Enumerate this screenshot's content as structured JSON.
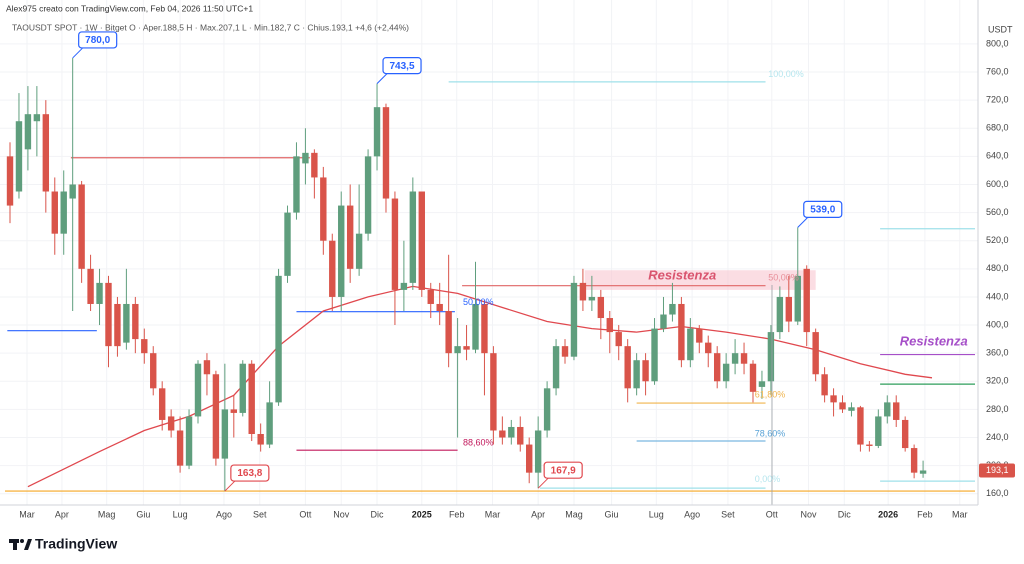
{
  "chart_data": {
    "type": "candlestick",
    "credit": "Alex975 creato con TradingView.com, Feb 04, 2026 11:50 UTC+1",
    "title": "TAOUSDT SPOT · 1W · Bitget   O · Aper.188,5   H · Max.207,1   L · Min.182,7   C · Chius.193,1   +4,6 (+2,44%)",
    "y_unit": "USDT",
    "logo": "TradingView",
    "up_color": "#5f9e7d",
    "down_color": "#d9544a",
    "grid": true,
    "xlim": [
      -0.56,
      107.8
    ],
    "ylim": [
      144,
      834
    ],
    "yticks": [
      {
        "value": 160,
        "label": "160,0"
      },
      {
        "value": 200,
        "label": "200,0"
      },
      {
        "value": 240,
        "label": "240,0"
      },
      {
        "value": 280,
        "label": "280,0"
      },
      {
        "value": 320,
        "label": "320,0"
      },
      {
        "value": 360,
        "label": "360,0"
      },
      {
        "value": 400,
        "label": "400,0"
      },
      {
        "value": 440,
        "label": "440,0"
      },
      {
        "value": 480,
        "label": "480,0"
      },
      {
        "value": 520,
        "label": "520,0"
      },
      {
        "value": 560,
        "label": "560,0"
      },
      {
        "value": 600,
        "label": "600,0"
      },
      {
        "value": 640,
        "label": "640,0"
      },
      {
        "value": 680,
        "label": "680,0"
      },
      {
        "value": 720,
        "label": "720,0"
      },
      {
        "value": 760,
        "label": "760,0"
      },
      {
        "value": 800,
        "label": "800,0"
      }
    ],
    "xticks": [
      {
        "value": 1.9,
        "label": "Mar"
      },
      {
        "value": 5.8,
        "label": "Apr"
      },
      {
        "value": 10.8,
        "label": "Mag"
      },
      {
        "value": 14.9,
        "label": "Giu"
      },
      {
        "value": 19.0,
        "label": "Lug"
      },
      {
        "value": 23.9,
        "label": "Ago"
      },
      {
        "value": 27.9,
        "label": "Set"
      },
      {
        "value": 33.0,
        "label": "Ott"
      },
      {
        "value": 37.0,
        "label": "Nov"
      },
      {
        "value": 41.0,
        "label": "Dic"
      },
      {
        "value": 46.0,
        "label": "2025"
      },
      {
        "value": 49.9,
        "label": "Feb"
      },
      {
        "value": 53.9,
        "label": "Mar"
      },
      {
        "value": 59.0,
        "label": "Apr"
      },
      {
        "value": 63.0,
        "label": "Mag"
      },
      {
        "value": 67.2,
        "label": "Giu"
      },
      {
        "value": 72.2,
        "label": "Lug"
      },
      {
        "value": 76.2,
        "label": "Ago"
      },
      {
        "value": 80.2,
        "label": "Set"
      },
      {
        "value": 85.1,
        "label": "Ott"
      },
      {
        "value": 89.2,
        "label": "Nov"
      },
      {
        "value": 93.2,
        "label": "Dic"
      },
      {
        "value": 98.1,
        "label": "2026"
      },
      {
        "value": 102.2,
        "label": "Feb"
      },
      {
        "value": 106.1,
        "label": "Mar"
      }
    ],
    "x": [
      0,
      1,
      2,
      3,
      4,
      5,
      6,
      7,
      8,
      9,
      10,
      11,
      12,
      13,
      14,
      15,
      16,
      17,
      18,
      19,
      20,
      21,
      22,
      23,
      24,
      25,
      26,
      27,
      28,
      29,
      30,
      31,
      32,
      33,
      34,
      35,
      36,
      37,
      38,
      39,
      40,
      41,
      42,
      43,
      44,
      45,
      46,
      47,
      48,
      49,
      50,
      51,
      52,
      53,
      54,
      55,
      56,
      57,
      58,
      59,
      60,
      61,
      62,
      63,
      64,
      65,
      66,
      67,
      68,
      69,
      70,
      71,
      72,
      73,
      74,
      75,
      76,
      77,
      78,
      79,
      80,
      81,
      82,
      83,
      84,
      85,
      86,
      87,
      88,
      89,
      90,
      91,
      92,
      93,
      94,
      95,
      96,
      97,
      98,
      99,
      100,
      101,
      102
    ],
    "open": [
      640,
      590,
      650,
      690,
      700,
      590,
      530,
      580,
      600,
      480,
      430,
      460,
      430,
      375,
      430,
      380,
      360,
      310,
      270,
      250,
      200,
      270,
      350,
      330,
      210,
      280,
      275,
      345,
      245,
      230,
      290,
      470,
      560,
      630,
      645,
      610,
      520,
      440,
      570,
      480,
      530,
      640,
      710,
      580,
      450,
      460,
      590,
      450,
      430,
      420,
      360,
      370,
      365,
      430,
      360,
      250,
      240,
      255,
      230,
      190,
      250,
      310,
      370,
      355,
      460,
      435,
      440,
      410,
      390,
      370,
      310,
      350,
      320,
      395,
      415,
      430,
      350,
      395,
      375,
      360,
      320,
      345,
      360,
      345,
      312,
      320,
      390,
      440,
      405,
      480,
      390,
      330,
      300,
      290,
      278,
      283,
      230,
      228,
      270,
      290,
      265,
      225,
      188.5
    ],
    "high": [
      660,
      730,
      740,
      740,
      720,
      610,
      620,
      780,
      605,
      500,
      480,
      470,
      440,
      480,
      440,
      395,
      370,
      320,
      280,
      270,
      280,
      350,
      360,
      335,
      345,
      300,
      350,
      350,
      260,
      320,
      480,
      570,
      660,
      680,
      650,
      625,
      530,
      590,
      600,
      600,
      650,
      743.5,
      715,
      590,
      520,
      610,
      590,
      460,
      460,
      500,
      410,
      400,
      490,
      435,
      370,
      270,
      265,
      270,
      240,
      270,
      320,
      380,
      380,
      470,
      480,
      470,
      450,
      420,
      400,
      380,
      360,
      360,
      410,
      440,
      460,
      440,
      410,
      400,
      385,
      370,
      360,
      380,
      375,
      350,
      335,
      400,
      455,
      470,
      539,
      485,
      395,
      340,
      310,
      300,
      290,
      285,
      235,
      280,
      300,
      300,
      270,
      230,
      207.1
    ],
    "low": [
      545,
      580,
      620,
      640,
      560,
      500,
      500,
      420,
      460,
      420,
      400,
      340,
      355,
      365,
      360,
      345,
      300,
      250,
      240,
      190,
      195,
      260,
      300,
      200,
      163.8,
      240,
      270,
      235,
      220,
      225,
      285,
      460,
      550,
      600,
      580,
      500,
      420,
      420,
      460,
      470,
      520,
      620,
      560,
      400,
      420,
      450,
      440,
      410,
      400,
      340,
      240,
      350,
      360,
      300,
      230,
      230,
      230,
      220,
      175,
      167.9,
      240,
      300,
      345,
      350,
      420,
      420,
      380,
      360,
      350,
      290,
      300,
      300,
      315,
      390,
      405,
      340,
      340,
      360,
      340,
      310,
      310,
      330,
      330,
      290,
      295,
      300,
      380,
      390,
      400,
      370,
      320,
      290,
      270,
      275,
      270,
      220,
      220,
      225,
      260,
      255,
      220,
      182,
      182.7
    ],
    "close": [
      570,
      690,
      700,
      700,
      590,
      530,
      590,
      600,
      480,
      430,
      460,
      370,
      370,
      430,
      380,
      360,
      310,
      265,
      250,
      200,
      270,
      345,
      330,
      210,
      280,
      275,
      345,
      245,
      230,
      290,
      470,
      560,
      640,
      645,
      610,
      520,
      440,
      570,
      480,
      530,
      640,
      710,
      580,
      450,
      460,
      590,
      450,
      430,
      420,
      360,
      370,
      365,
      430,
      360,
      250,
      240,
      255,
      230,
      190,
      250,
      310,
      370,
      355,
      460,
      435,
      440,
      410,
      390,
      370,
      310,
      350,
      320,
      395,
      415,
      430,
      350,
      395,
      375,
      360,
      320,
      345,
      360,
      345,
      305,
      320,
      390,
      440,
      405,
      470,
      390,
      330,
      300,
      290,
      280,
      283,
      230,
      228,
      270,
      290,
      265,
      225,
      190,
      193.1
    ],
    "ma": {
      "color": "#e0484e",
      "x": [
        2,
        10,
        15,
        20,
        25,
        30,
        35,
        40,
        45,
        50,
        55,
        60,
        65,
        70,
        75,
        80,
        85,
        90,
        95,
        100,
        103
      ],
      "values": [
        170,
        220,
        250,
        270,
        300,
        370,
        420,
        440,
        455,
        445,
        425,
        405,
        395,
        390,
        398,
        390,
        380,
        365,
        345,
        330,
        325
      ]
    },
    "levels": [
      {
        "price": 638,
        "x": [
          6.8,
          33.5
        ],
        "color": "#e06666"
      },
      {
        "price": 392,
        "x": [
          -0.3,
          9.7
        ],
        "color": "#2962ff"
      },
      {
        "price": 419,
        "x": [
          32,
          49.7
        ],
        "color": "#2962ff"
      },
      {
        "price": 222,
        "x": [
          32,
          50
        ],
        "color": "#c2185b"
      },
      {
        "price": 456,
        "x": [
          50.5,
          84.4
        ],
        "color": "#e06666"
      },
      {
        "price": 746,
        "x": [
          49,
          84.4
        ],
        "color": "#9fe0ea"
      },
      {
        "price": 289,
        "x": [
          70,
          84.4
        ],
        "color": "#f0b44c"
      },
      {
        "price": 235,
        "x": [
          70,
          84.4
        ],
        "color": "#7ab8e0"
      },
      {
        "price": 168,
        "x": [
          59.2,
          84.4
        ],
        "color": "#9fe0ea"
      },
      {
        "price": 163.8,
        "x": [
          -0.56,
          107.8
        ],
        "color": "#f5a623"
      },
      {
        "price": 537,
        "x": [
          97.2,
          107.8
        ],
        "color": "#9fe0ea"
      },
      {
        "price": 358,
        "x": [
          97.2,
          107.8
        ],
        "color": "#a64fc8"
      },
      {
        "price": 316,
        "x": [
          97.2,
          107.8
        ],
        "color": "#2e9e5b"
      },
      {
        "price": 178,
        "x": [
          97.2,
          107.8
        ],
        "color": "#9fe0ea"
      }
    ],
    "zones": [
      {
        "prices": [
          450,
          478
        ],
        "x": [
          64.2,
          90
        ],
        "color": "#f8c7d0"
      }
    ],
    "texts": [
      {
        "text": "Resistenza",
        "x": 71.3,
        "price": 470,
        "color": "#d9546e",
        "size": 13
      },
      {
        "text": "Resistenza",
        "x": 99.4,
        "price": 376,
        "color": "#a64fc8",
        "size": 13
      },
      {
        "text": "100,00%",
        "x": 84.7,
        "price": 756,
        "color": "#b6e6ee",
        "size": 9
      },
      {
        "text": "50,00%",
        "x": 84.7,
        "price": 467,
        "color": "#e88f9a",
        "size": 9
      },
      {
        "text": "61,80%",
        "x": 83.2,
        "price": 300,
        "color": "#f0b44c",
        "size": 9
      },
      {
        "text": "78,60%",
        "x": 83.2,
        "price": 245,
        "color": "#5aa3d6",
        "size": 9
      },
      {
        "text": "0,00%",
        "x": 83.2,
        "price": 180,
        "color": "#b6e6ee",
        "size": 9
      },
      {
        "text": "88,60%",
        "x": 50.6,
        "price": 232,
        "color": "#c2185b",
        "size": 9
      },
      {
        "text": "50,00%",
        "x": 50.6,
        "price": 432,
        "color": "#2962ff",
        "size": 9
      }
    ],
    "callouts": [
      {
        "x": 7,
        "price": {
          "value": 780,
          "label": "780,0"
        },
        "color": "#2962ff"
      },
      {
        "x": 41,
        "price": {
          "value": 743.5,
          "label": "743,5"
        },
        "color": "#2962ff"
      },
      {
        "x": 88,
        "price": {
          "value": 539,
          "label": "539,0"
        },
        "color": "#2962ff"
      },
      {
        "x": 24,
        "price": {
          "value": 163.8,
          "label": "163,8"
        },
        "color": "#e0484e"
      },
      {
        "x": 59,
        "price": {
          "value": 167.9,
          "label": "167,9"
        },
        "color": "#e0484e"
      }
    ],
    "last_price": {
      "value": 193.1,
      "label": "193,1",
      "color": "#d9544a"
    }
  }
}
